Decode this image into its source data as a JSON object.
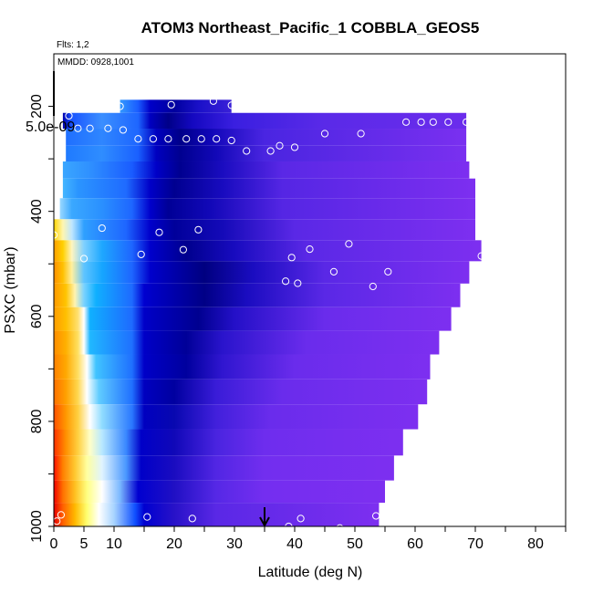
{
  "chart_data": {
    "type": "heatmap",
    "title": "ATOM3 Northeast_Pacific_1 COBBLA_GEOS5",
    "flights_label": "Flts: 1,2",
    "dates_label": "MMDD: 0928,1001",
    "scale_label": "5.0e-09",
    "xlabel": "Latitude (deg N)",
    "ylabel": "PSXC (mbar)",
    "xlim": [
      0,
      85
    ],
    "ylim": [
      1000,
      100
    ],
    "xticks": [
      0,
      5,
      10,
      20,
      30,
      40,
      50,
      60,
      70,
      80
    ],
    "xtick_labels": [
      "0",
      "5",
      "10",
      "20",
      "30",
      "40",
      "50",
      "60",
      "70",
      "80"
    ],
    "yticks": [
      200,
      400,
      600,
      800,
      1000
    ],
    "ytick_labels": [
      "200",
      "400",
      "600",
      "800",
      "1000"
    ],
    "grid": false,
    "legend": "none",
    "marker_latitude": 35,
    "rows": [
      {
        "p": 200,
        "lat_start": 11,
        "lat_end": 29.5,
        "color_stops": [
          [
            11,
            "#3399ff"
          ],
          [
            14,
            "#1a5cff"
          ],
          [
            16,
            "#0000c8"
          ],
          [
            20,
            "#00009e"
          ],
          [
            24,
            "#1a10c8"
          ],
          [
            29.5,
            "#3a20d8"
          ]
        ]
      },
      {
        "p": 225,
        "lat_start": 1.5,
        "lat_end": 68.5,
        "color_stops": [
          [
            1.5,
            "#0000b0"
          ],
          [
            3,
            "#1a55ff"
          ],
          [
            8,
            "#3b8fff"
          ],
          [
            14,
            "#1e66ff"
          ],
          [
            16,
            "#0000c0"
          ],
          [
            19,
            "#000088"
          ],
          [
            23,
            "#1408c0"
          ],
          [
            30,
            "#3a1fe0"
          ],
          [
            45,
            "#5a2ae8"
          ],
          [
            68.5,
            "#6b2cec"
          ]
        ]
      },
      {
        "p": 260,
        "lat_start": 2,
        "lat_end": 68.5,
        "color_stops": [
          [
            2,
            "#1f6fff"
          ],
          [
            8,
            "#2f86ff"
          ],
          [
            14,
            "#1e66ff"
          ],
          [
            17,
            "#0000c0"
          ],
          [
            21,
            "#00008a"
          ],
          [
            26,
            "#1006b8"
          ],
          [
            35,
            "#4a25e2"
          ],
          [
            68.5,
            "#7a30f0"
          ]
        ]
      },
      {
        "p": 290,
        "lat_start": 2,
        "lat_end": 68.5,
        "color_stops": [
          [
            2,
            "#1f7aff"
          ],
          [
            8,
            "#2f8dff"
          ],
          [
            14,
            "#1a60ff"
          ],
          [
            17,
            "#0000c0"
          ],
          [
            21,
            "#000090"
          ],
          [
            27,
            "#1208b8"
          ],
          [
            35,
            "#4a25e0"
          ],
          [
            68.5,
            "#7a30f0"
          ]
        ]
      },
      {
        "p": 320,
        "lat_start": 1.5,
        "lat_end": 69,
        "color_stops": [
          [
            1.5,
            "#3aa6ff"
          ],
          [
            6,
            "#2f90ff"
          ],
          [
            13,
            "#1a5cff"
          ],
          [
            17,
            "#0000c8"
          ],
          [
            21,
            "#000090"
          ],
          [
            28,
            "#1a0cc0"
          ],
          [
            38,
            "#5a28e6"
          ],
          [
            69,
            "#7d2ff0"
          ]
        ]
      },
      {
        "p": 355,
        "lat_start": 1.5,
        "lat_end": 70,
        "color_stops": [
          [
            1.5,
            "#45b6ff"
          ],
          [
            4,
            "#2b95ff"
          ],
          [
            12,
            "#1f6bff"
          ],
          [
            16,
            "#0000c8"
          ],
          [
            20,
            "#000090"
          ],
          [
            28,
            "#180bbf"
          ],
          [
            38,
            "#5526e4"
          ],
          [
            70,
            "#7d2ff0"
          ]
        ]
      },
      {
        "p": 395,
        "lat_start": 1,
        "lat_end": 70,
        "color_stops": [
          [
            1,
            "#9ad8ff"
          ],
          [
            3,
            "#3aa8ff"
          ],
          [
            8,
            "#2a90ff"
          ],
          [
            13,
            "#1e66ff"
          ],
          [
            16,
            "#0000cc"
          ],
          [
            19,
            "#000096"
          ],
          [
            26,
            "#1208b8"
          ],
          [
            38,
            "#5526e4"
          ],
          [
            70,
            "#7d2ff0"
          ]
        ]
      },
      {
        "p": 435,
        "lat_start": 0,
        "lat_end": 70,
        "color_stops": [
          [
            0,
            "#ffd400"
          ],
          [
            1.5,
            "#fff6b0"
          ],
          [
            3,
            "#bfe6ff"
          ],
          [
            5,
            "#2fa0ff"
          ],
          [
            12,
            "#1e66ff"
          ],
          [
            16,
            "#0000cc"
          ],
          [
            20,
            "#00009a"
          ],
          [
            28,
            "#140ab8"
          ],
          [
            40,
            "#5a28e6"
          ],
          [
            70,
            "#7d2ff0"
          ]
        ]
      },
      {
        "p": 475,
        "lat_start": 0,
        "lat_end": 71,
        "color_stops": [
          [
            0,
            "#ffa000"
          ],
          [
            1.5,
            "#ffd000"
          ],
          [
            3,
            "#fff5c0"
          ],
          [
            5,
            "#7fd0ff"
          ],
          [
            8,
            "#1ea8ff"
          ],
          [
            13,
            "#1e66ff"
          ],
          [
            16,
            "#0000cc"
          ],
          [
            22,
            "#00008e"
          ],
          [
            30,
            "#180bbf"
          ],
          [
            42,
            "#5a28e6"
          ],
          [
            71,
            "#7d2ff0"
          ]
        ]
      },
      {
        "p": 515,
        "lat_start": 0,
        "lat_end": 69,
        "color_stops": [
          [
            0,
            "#ff9000"
          ],
          [
            1.5,
            "#ffc000"
          ],
          [
            3,
            "#fff0a0"
          ],
          [
            5,
            "#5fc4ff"
          ],
          [
            8,
            "#16a6ff"
          ],
          [
            13,
            "#1e66ff"
          ],
          [
            16,
            "#0000cc"
          ],
          [
            25,
            "#000080"
          ],
          [
            33,
            "#1a0cc0"
          ],
          [
            45,
            "#5a28e6"
          ],
          [
            69,
            "#7d2ff0"
          ]
        ]
      },
      {
        "p": 560,
        "lat_start": 0,
        "lat_end": 67.5,
        "color_stops": [
          [
            0,
            "#ff9800"
          ],
          [
            2,
            "#ffc400"
          ],
          [
            3.5,
            "#fff3b0"
          ],
          [
            5,
            "#7ad2ff"
          ],
          [
            7,
            "#10b0ff"
          ],
          [
            13,
            "#1e6aff"
          ],
          [
            15,
            "#0000d0"
          ],
          [
            25,
            "#000086"
          ],
          [
            32,
            "#1a0cc0"
          ],
          [
            45,
            "#5a28e6"
          ],
          [
            67.5,
            "#7d2ff0"
          ]
        ]
      },
      {
        "p": 605,
        "lat_start": 0,
        "lat_end": 66,
        "color_stops": [
          [
            0,
            "#ff9c00"
          ],
          [
            2,
            "#ffbf00"
          ],
          [
            4,
            "#ffe070"
          ],
          [
            5,
            "#ffffff"
          ],
          [
            6,
            "#10b0ff"
          ],
          [
            13,
            "#1e6aff"
          ],
          [
            15,
            "#0000c8"
          ],
          [
            24,
            "#000090"
          ],
          [
            30,
            "#2410c8"
          ],
          [
            45,
            "#6a2cec"
          ],
          [
            66,
            "#7d2ff0"
          ]
        ]
      },
      {
        "p": 650,
        "lat_start": 0,
        "lat_end": 64,
        "color_stops": [
          [
            0,
            "#ff8c00"
          ],
          [
            2,
            "#ffb000"
          ],
          [
            4,
            "#ffe060"
          ],
          [
            5,
            "#ffffff"
          ],
          [
            6,
            "#20b8ff"
          ],
          [
            13,
            "#1f70ff"
          ],
          [
            15,
            "#0000c8"
          ],
          [
            22,
            "#000098"
          ],
          [
            28,
            "#2a14cc"
          ],
          [
            42,
            "#6a2cec"
          ],
          [
            64,
            "#7d2ff0"
          ]
        ]
      },
      {
        "p": 695,
        "lat_start": 0,
        "lat_end": 62.5,
        "color_stops": [
          [
            0,
            "#ff8000"
          ],
          [
            2,
            "#ffa800"
          ],
          [
            4,
            "#ffde60"
          ],
          [
            5.5,
            "#ffffff"
          ],
          [
            7,
            "#40c4ff"
          ],
          [
            13,
            "#1f70ff"
          ],
          [
            15,
            "#0000c8"
          ],
          [
            22,
            "#00009e"
          ],
          [
            28,
            "#3016d0"
          ],
          [
            40,
            "#6a2cec"
          ],
          [
            62.5,
            "#7d2ff0"
          ]
        ]
      },
      {
        "p": 745,
        "lat_start": 0,
        "lat_end": 62,
        "color_stops": [
          [
            0,
            "#ff7000"
          ],
          [
            2,
            "#ffa000"
          ],
          [
            4,
            "#ffd850"
          ],
          [
            5.5,
            "#ffffff"
          ],
          [
            7.5,
            "#60ccff"
          ],
          [
            13,
            "#2070ff"
          ],
          [
            15,
            "#0000c0"
          ],
          [
            20,
            "#0000a0"
          ],
          [
            27,
            "#3a1cd8"
          ],
          [
            38,
            "#6a2cec"
          ],
          [
            62,
            "#7d2ff0"
          ]
        ]
      },
      {
        "p": 790,
        "lat_start": 0,
        "lat_end": 60.5,
        "color_stops": [
          [
            0,
            "#ff5000"
          ],
          [
            2,
            "#ff9800"
          ],
          [
            4,
            "#ffd040"
          ],
          [
            6,
            "#ffffff"
          ],
          [
            8,
            "#90dcff"
          ],
          [
            13,
            "#2a78ff"
          ],
          [
            15,
            "#0000c0"
          ],
          [
            20,
            "#0808b0"
          ],
          [
            27,
            "#4220dc"
          ],
          [
            36,
            "#6a2cec"
          ],
          [
            60.5,
            "#7d2ff0"
          ]
        ]
      },
      {
        "p": 840,
        "lat_start": 0,
        "lat_end": 58,
        "color_stops": [
          [
            0,
            "#ff3000"
          ],
          [
            2,
            "#ff9000"
          ],
          [
            4,
            "#ffd040"
          ],
          [
            6,
            "#ffffc8"
          ],
          [
            8,
            "#b8e8ff"
          ],
          [
            12,
            "#3a88ff"
          ],
          [
            14.5,
            "#0000c8"
          ],
          [
            20,
            "#1008b8"
          ],
          [
            27,
            "#4a24e0"
          ],
          [
            35,
            "#6e2dee"
          ],
          [
            58,
            "#7d2ff0"
          ]
        ]
      },
      {
        "p": 890,
        "lat_start": 0,
        "lat_end": 56.5,
        "color_stops": [
          [
            0,
            "#ff1000"
          ],
          [
            1.5,
            "#ff8000"
          ],
          [
            3.5,
            "#ffc830"
          ],
          [
            5.5,
            "#ffffa0"
          ],
          [
            8,
            "#e0f4ff"
          ],
          [
            12,
            "#4a98ff"
          ],
          [
            14.5,
            "#0000c8"
          ],
          [
            20,
            "#1a0cc0"
          ],
          [
            27,
            "#5226e4"
          ],
          [
            35,
            "#722eef"
          ],
          [
            56.5,
            "#7d2ff0"
          ]
        ]
      },
      {
        "p": 935,
        "lat_start": 0,
        "lat_end": 55,
        "color_stops": [
          [
            0,
            "#f00000"
          ],
          [
            1.5,
            "#ff7000"
          ],
          [
            3.5,
            "#ffc020"
          ],
          [
            5.5,
            "#ffff80"
          ],
          [
            8,
            "#ffffff"
          ],
          [
            11,
            "#7ab8ff"
          ],
          [
            14,
            "#0000d0"
          ],
          [
            20,
            "#2010c4"
          ],
          [
            27,
            "#5628e6"
          ],
          [
            35,
            "#742ef0"
          ],
          [
            55,
            "#7d2ff0"
          ]
        ]
      },
      {
        "p": 975,
        "lat_start": 0,
        "lat_end": 54,
        "color_stops": [
          [
            0,
            "#e80000"
          ],
          [
            1.5,
            "#ff6000"
          ],
          [
            3.5,
            "#ffb800"
          ],
          [
            5.5,
            "#ffff70"
          ],
          [
            7.5,
            "#ffffff"
          ],
          [
            10,
            "#a8d4ff"
          ],
          [
            13.5,
            "#1050ff"
          ],
          [
            15,
            "#0000d0"
          ],
          [
            20,
            "#2812c8"
          ],
          [
            27,
            "#5a28e6"
          ],
          [
            54,
            "#7d2ff0"
          ]
        ]
      }
    ],
    "points": [
      {
        "lat": 11,
        "p": 200
      },
      {
        "lat": 19.5,
        "p": 197
      },
      {
        "lat": 26.5,
        "p": 190
      },
      {
        "lat": 29.5,
        "p": 198
      },
      {
        "lat": 2.5,
        "p": 218
      },
      {
        "lat": 4,
        "p": 242
      },
      {
        "lat": 6,
        "p": 242
      },
      {
        "lat": 9,
        "p": 242
      },
      {
        "lat": 11.5,
        "p": 245
      },
      {
        "lat": 14,
        "p": 262
      },
      {
        "lat": 16.5,
        "p": 262
      },
      {
        "lat": 19,
        "p": 262
      },
      {
        "lat": 22,
        "p": 262
      },
      {
        "lat": 24.5,
        "p": 262
      },
      {
        "lat": 27,
        "p": 262
      },
      {
        "lat": 29.5,
        "p": 265
      },
      {
        "lat": 32,
        "p": 285
      },
      {
        "lat": 36,
        "p": 285
      },
      {
        "lat": 37.5,
        "p": 275
      },
      {
        "lat": 40,
        "p": 278
      },
      {
        "lat": 45,
        "p": 252
      },
      {
        "lat": 51,
        "p": 252
      },
      {
        "lat": 58.5,
        "p": 230
      },
      {
        "lat": 61,
        "p": 230
      },
      {
        "lat": 63,
        "p": 230
      },
      {
        "lat": 65.5,
        "p": 230
      },
      {
        "lat": 68.5,
        "p": 230
      },
      {
        "lat": 0,
        "p": 445
      },
      {
        "lat": 5,
        "p": 490
      },
      {
        "lat": 8,
        "p": 432
      },
      {
        "lat": 14.5,
        "p": 482
      },
      {
        "lat": 17.5,
        "p": 440
      },
      {
        "lat": 21.5,
        "p": 473
      },
      {
        "lat": 24,
        "p": 435
      },
      {
        "lat": 42.5,
        "p": 472
      },
      {
        "lat": 39.5,
        "p": 488
      },
      {
        "lat": 49,
        "p": 462
      },
      {
        "lat": 46.5,
        "p": 515
      },
      {
        "lat": 55.5,
        "p": 515
      },
      {
        "lat": 53,
        "p": 543
      },
      {
        "lat": 71,
        "p": 485
      },
      {
        "lat": 38.5,
        "p": 533
      },
      {
        "lat": 40.5,
        "p": 537
      },
      {
        "lat": 1.2,
        "p": 978
      },
      {
        "lat": 0.5,
        "p": 990
      },
      {
        "lat": 15.5,
        "p": 982
      },
      {
        "lat": 23,
        "p": 985
      },
      {
        "lat": 39,
        "p": 1000
      },
      {
        "lat": 41,
        "p": 985
      },
      {
        "lat": 47.5,
        "p": 1003
      },
      {
        "lat": 53.5,
        "p": 980
      }
    ]
  }
}
